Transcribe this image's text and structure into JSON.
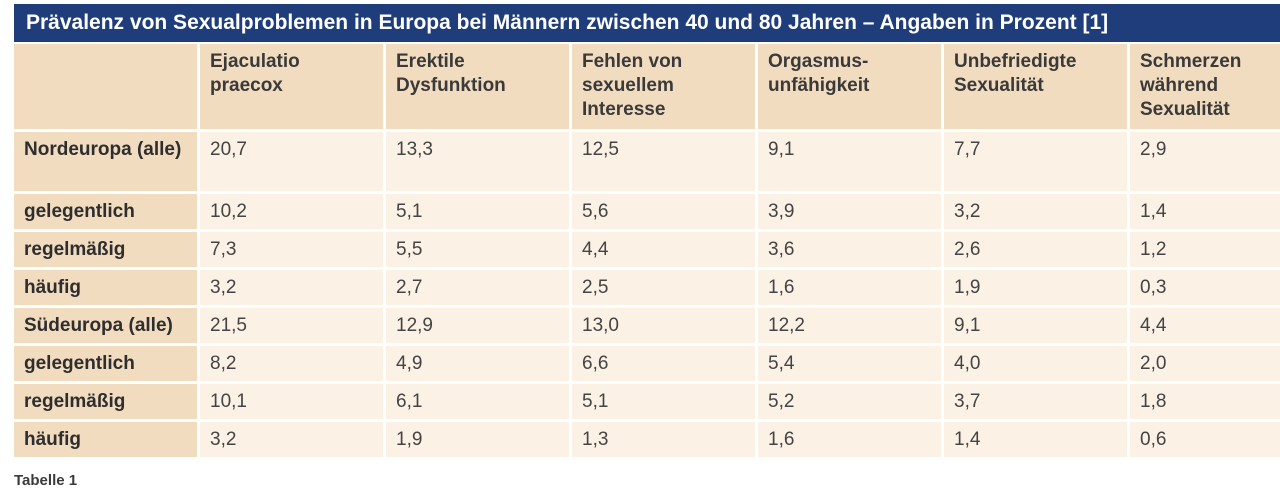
{
  "title": "Prävalenz von Sexualproblemen in Europa bei Männern zwischen 40 und 80 Jahren – Angaben in Prozent [1]",
  "columns": [
    "",
    "Ejaculatio praecox",
    "Erektile Dysfunktion",
    "Fehlen von sexuellem Interesse",
    "Orgasmus-unfähigkeit",
    "Unbefriedigte Sexualität",
    "Schmerzen während Sexualität"
  ],
  "rows": [
    {
      "label": "Nordeuropa (alle)",
      "values": [
        "20,7",
        "13,3",
        "12,5",
        "9,1",
        "7,7",
        "2,9"
      ]
    },
    {
      "label": "gelegentlich",
      "values": [
        "10,2",
        "5,1",
        "5,6",
        "3,9",
        "3,2",
        "1,4"
      ]
    },
    {
      "label": "regelmäßig",
      "values": [
        "7,3",
        "5,5",
        "4,4",
        "3,6",
        "2,6",
        "1,2"
      ]
    },
    {
      "label": "häufig",
      "values": [
        "3,2",
        "2,7",
        "2,5",
        "1,6",
        "1,9",
        "0,3"
      ]
    },
    {
      "label": "Südeuropa (alle)",
      "values": [
        "21,5",
        "12,9",
        "13,0",
        "12,2",
        "9,1",
        "4,4"
      ]
    },
    {
      "label": "gelegentlich",
      "values": [
        "8,2",
        "4,9",
        "6,6",
        "5,4",
        "4,0",
        "2,0"
      ]
    },
    {
      "label": "regelmäßig",
      "values": [
        "10,1",
        "6,1",
        "5,1",
        "5,2",
        "3,7",
        "1,8"
      ]
    },
    {
      "label": "häufig",
      "values": [
        "3,2",
        "1,9",
        "1,3",
        "1,6",
        "1,4",
        "0,6"
      ]
    }
  ],
  "caption": "Tabelle 1",
  "colors": {
    "title_bar": "#1f3d7a",
    "header_cell": "#f1dcc0",
    "data_cell": "#fbf1e5"
  }
}
